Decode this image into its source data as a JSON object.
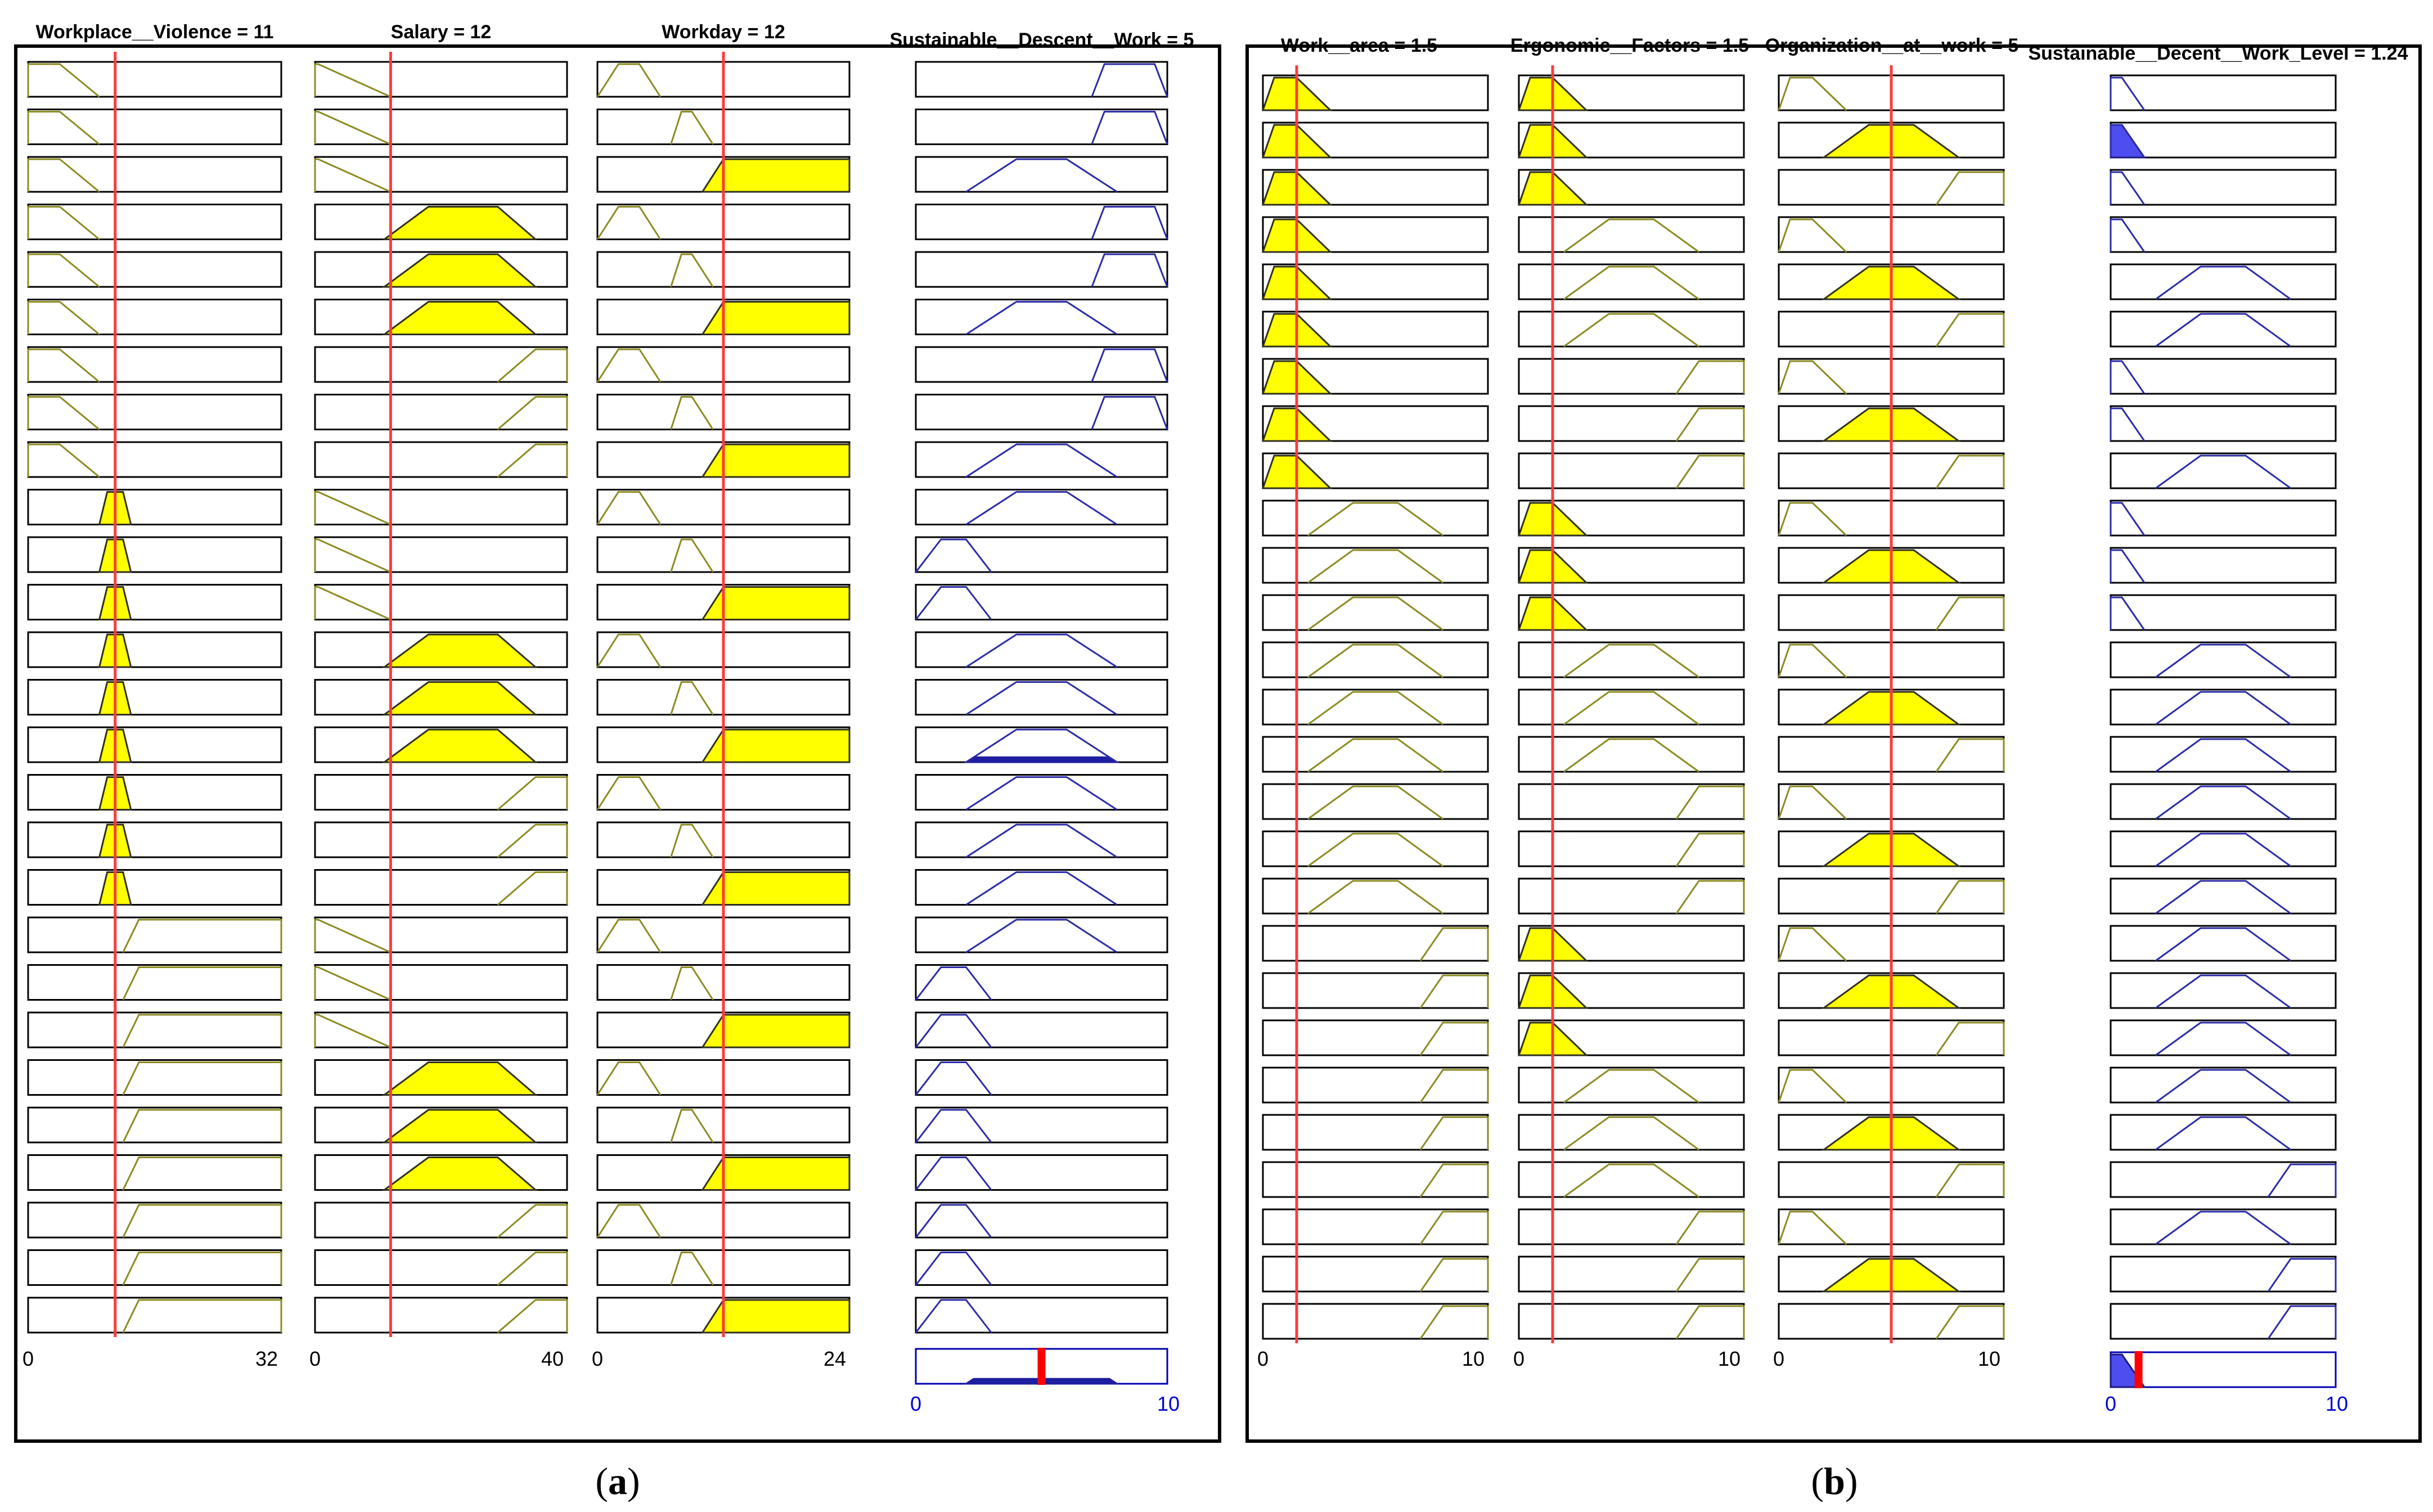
{
  "panels": [
    {
      "id": "a",
      "caption": "(a)",
      "caption_letter": "a",
      "inputs": [
        {
          "title": "Workplace__Violence = 11",
          "min_label": "0",
          "max_label": "32",
          "range": [
            0,
            32
          ],
          "value": 11,
          "mfs": {
            "low": [
              0,
              0,
              4,
              9
            ],
            "mid": [
              9,
              10,
              12,
              13
            ],
            "high": [
              12,
              14,
              32,
              32
            ]
          },
          "rule_mf": [
            "low",
            "low",
            "low",
            "low",
            "low",
            "low",
            "low",
            "low",
            "low",
            "mid",
            "mid",
            "mid",
            "mid",
            "mid",
            "mid",
            "mid",
            "mid",
            "mid",
            "high",
            "high",
            "high",
            "high",
            "high",
            "high",
            "high",
            "high",
            "high"
          ],
          "rule_active": [
            false,
            false,
            false,
            false,
            false,
            false,
            false,
            false,
            false,
            true,
            true,
            true,
            true,
            true,
            true,
            true,
            true,
            true,
            false,
            false,
            false,
            false,
            false,
            false,
            false,
            false,
            false
          ]
        },
        {
          "title": "Salary = 12",
          "min_label": "0",
          "max_label": "40",
          "range": [
            0,
            40
          ],
          "value": 12,
          "mfs": {
            "low": [
              0,
              0,
              0.5,
              12
            ],
            "mid": [
              11,
              18,
              29,
              35
            ],
            "high": [
              29,
              35,
              40,
              40
            ]
          },
          "rule_mf": [
            "low",
            "low",
            "low",
            "mid",
            "mid",
            "mid",
            "high",
            "high",
            "high",
            "low",
            "low",
            "low",
            "mid",
            "mid",
            "mid",
            "high",
            "high",
            "high",
            "low",
            "low",
            "low",
            "mid",
            "mid",
            "mid",
            "high",
            "high",
            "high"
          ],
          "rule_active": [
            false,
            false,
            false,
            true,
            true,
            true,
            false,
            false,
            false,
            false,
            false,
            false,
            true,
            true,
            true,
            false,
            false,
            false,
            false,
            false,
            false,
            true,
            true,
            true,
            false,
            false,
            false
          ]
        },
        {
          "title": "Workday = 12",
          "min_label": "0",
          "max_label": "24",
          "range": [
            0,
            24
          ],
          "value": 12,
          "mfs": {
            "low": [
              0,
              2,
              4,
              6
            ],
            "mid": [
              7,
              8,
              9,
              11
            ],
            "high": [
              10,
              12,
              24,
              24
            ]
          },
          "rule_mf": [
            "low",
            "mid",
            "high",
            "low",
            "mid",
            "high",
            "low",
            "mid",
            "high",
            "low",
            "mid",
            "high",
            "low",
            "mid",
            "high",
            "low",
            "mid",
            "high",
            "low",
            "mid",
            "high",
            "low",
            "mid",
            "high",
            "low",
            "mid",
            "high"
          ],
          "rule_active": [
            false,
            false,
            true,
            false,
            false,
            true,
            false,
            false,
            true,
            false,
            false,
            true,
            false,
            false,
            true,
            false,
            false,
            true,
            false,
            false,
            true,
            false,
            false,
            true,
            false,
            false,
            true
          ]
        }
      ],
      "output": {
        "title": "Sustainable__Descent__Work = 5",
        "min_label": "0",
        "max_label": "10",
        "range": [
          0,
          10
        ],
        "value": 5,
        "mfs": {
          "low": [
            0,
            1,
            2,
            3
          ],
          "mid": [
            2,
            4,
            6,
            8
          ],
          "high": [
            7,
            7.5,
            9.5,
            10
          ]
        },
        "rule_mf": [
          "high",
          "high",
          "mid",
          "high",
          "high",
          "mid",
          "high",
          "high",
          "mid",
          "mid",
          "low",
          "low",
          "mid",
          "mid",
          "mid",
          "mid",
          "mid",
          "mid",
          "mid",
          "low",
          "low",
          "low",
          "low",
          "low",
          "low",
          "low",
          "low"
        ],
        "rule_fill": [
          0,
          0,
          0,
          0,
          0,
          0,
          0,
          0,
          0,
          0,
          0,
          0,
          0,
          0,
          0.15,
          0,
          0,
          0,
          0,
          0,
          0,
          0,
          0,
          0,
          0,
          0,
          0
        ],
        "aggregate_level": 0.15
      }
    },
    {
      "id": "b",
      "caption": "(b)",
      "caption_letter": "b",
      "inputs": [
        {
          "title": "Work__area = 1.5",
          "min_label": "0",
          "max_label": "10",
          "range": [
            0,
            10
          ],
          "value": 1.5,
          "mfs": {
            "low": [
              0,
              0.5,
              1.5,
              3
            ],
            "mid": [
              2,
              4,
              6,
              8
            ],
            "high": [
              7,
              8,
              10,
              10
            ]
          },
          "rule_mf": [
            "low",
            "low",
            "low",
            "low",
            "low",
            "low",
            "low",
            "low",
            "low",
            "mid",
            "mid",
            "mid",
            "mid",
            "mid",
            "mid",
            "mid",
            "mid",
            "mid",
            "high",
            "high",
            "high",
            "high",
            "high",
            "high",
            "high",
            "high",
            "high"
          ],
          "rule_active": [
            true,
            true,
            true,
            true,
            true,
            true,
            true,
            true,
            true,
            false,
            false,
            false,
            false,
            false,
            false,
            false,
            false,
            false,
            false,
            false,
            false,
            false,
            false,
            false,
            false,
            false,
            false
          ]
        },
        {
          "title": "Ergonomic__Factors = 1.5",
          "min_label": "0",
          "max_label": "10",
          "range": [
            0,
            10
          ],
          "value": 1.5,
          "mfs": {
            "low": [
              0,
              0.5,
              1.5,
              3
            ],
            "mid": [
              2,
              4,
              6,
              8
            ],
            "high": [
              7,
              8,
              10,
              10
            ]
          },
          "rule_mf": [
            "low",
            "low",
            "low",
            "mid",
            "mid",
            "mid",
            "high",
            "high",
            "high",
            "low",
            "low",
            "low",
            "mid",
            "mid",
            "mid",
            "high",
            "high",
            "high",
            "low",
            "low",
            "low",
            "mid",
            "mid",
            "mid",
            "high",
            "high",
            "high"
          ],
          "rule_active": [
            true,
            true,
            true,
            false,
            false,
            false,
            false,
            false,
            false,
            true,
            true,
            true,
            false,
            false,
            false,
            false,
            false,
            false,
            true,
            true,
            true,
            false,
            false,
            false,
            false,
            false,
            false
          ]
        },
        {
          "title": "Organization__at__work = 5",
          "min_label": "0",
          "max_label": "10",
          "range": [
            0,
            10
          ],
          "value": 5,
          "mfs": {
            "low": [
              0,
              0.5,
              1.5,
              3
            ],
            "mid": [
              2,
              4,
              6,
              8
            ],
            "high": [
              7,
              8,
              10,
              10
            ]
          },
          "rule_mf": [
            "low",
            "mid",
            "high",
            "low",
            "mid",
            "high",
            "low",
            "mid",
            "high",
            "low",
            "mid",
            "high",
            "low",
            "mid",
            "high",
            "low",
            "mid",
            "high",
            "low",
            "mid",
            "high",
            "low",
            "mid",
            "high",
            "low",
            "mid",
            "high"
          ],
          "rule_active": [
            false,
            true,
            false,
            false,
            true,
            false,
            false,
            true,
            false,
            false,
            true,
            false,
            false,
            true,
            false,
            false,
            true,
            false,
            false,
            true,
            false,
            false,
            true,
            false,
            false,
            true,
            false
          ]
        }
      ],
      "output": {
        "title": "Sustainable__Decent__Work_Level = 1.24",
        "min_label": "0",
        "max_label": "10",
        "range": [
          0,
          10
        ],
        "value": 1.24,
        "mfs": {
          "low": [
            0,
            0,
            0.5,
            1.5
          ],
          "mid": [
            2,
            4,
            6,
            8
          ],
          "high": [
            7,
            8,
            10,
            10
          ]
        },
        "rule_mf": [
          "low",
          "low",
          "low",
          "low",
          "mid",
          "mid",
          "low",
          "low",
          "mid",
          "low",
          "low",
          "low",
          "mid",
          "mid",
          "mid",
          "mid",
          "mid",
          "mid",
          "mid",
          "mid",
          "mid",
          "mid",
          "mid",
          "high",
          "mid",
          "high",
          "high"
        ],
        "rule_fill": [
          0,
          1,
          0,
          0,
          0,
          0,
          0,
          0,
          0,
          0,
          0,
          0,
          0,
          0,
          0,
          0,
          0,
          0,
          0,
          0,
          0,
          0,
          0,
          0,
          0,
          0,
          0
        ],
        "aggregate_level": 1
      }
    }
  ]
}
